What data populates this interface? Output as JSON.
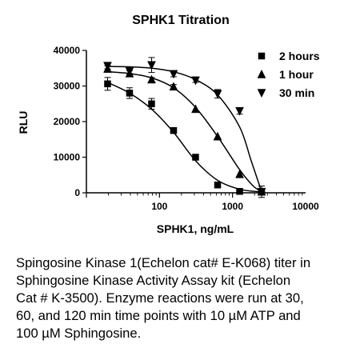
{
  "chart_data": {
    "type": "scatter",
    "title": "SPHK1 Titration",
    "xlabel": "SPHK1, ng/mL",
    "ylabel": "RLU",
    "x_scale": "log",
    "xlim": [
      10,
      10000
    ],
    "ylim": [
      0,
      40000
    ],
    "x_ticks": [
      100,
      1000,
      10000
    ],
    "y_ticks": [
      0,
      10000,
      20000,
      30000,
      40000
    ],
    "x_tick_labels": [
      "100",
      "1000",
      "10000"
    ],
    "y_tick_labels": [
      "0",
      "10000",
      "20000",
      "30000",
      "40000"
    ],
    "grid": false,
    "legend_position": "top-right",
    "series": [
      {
        "name": "2 hours",
        "marker": "square",
        "x": [
          19.5,
          39,
          78,
          156,
          312,
          625,
          1250,
          2500
        ],
        "y": [
          30600,
          28000,
          25000,
          17500,
          10000,
          2200,
          400,
          200
        ],
        "error": [
          1800,
          1500,
          1500,
          0,
          0,
          0,
          0,
          0
        ],
        "curve": [
          [
            19.5,
            31000
          ],
          [
            39,
            28000
          ],
          [
            78,
            23500
          ],
          [
            156,
            17000
          ],
          [
            312,
            9000
          ],
          [
            625,
            3500
          ],
          [
            1250,
            1000
          ],
          [
            2500,
            250
          ]
        ]
      },
      {
        "name": "1 hour",
        "marker": "triangle-up",
        "x": [
          19.5,
          39,
          78,
          156,
          312,
          625,
          1250,
          2500
        ],
        "y": [
          34800,
          33500,
          31800,
          29800,
          23500,
          15800,
          5200,
          300
        ],
        "error": [
          900,
          800,
          600,
          600,
          0,
          0,
          0,
          0
        ],
        "curve": [
          [
            19.5,
            34000
          ],
          [
            39,
            33500
          ],
          [
            78,
            32300
          ],
          [
            156,
            29500
          ],
          [
            312,
            24000
          ],
          [
            625,
            15800
          ],
          [
            1250,
            6500
          ],
          [
            1900,
            2000
          ],
          [
            2500,
            300
          ]
        ]
      },
      {
        "name": "30 min",
        "marker": "triangle-down",
        "x": [
          19.5,
          39,
          78,
          156,
          312,
          625,
          1250,
          2500
        ],
        "y": [
          35700,
          34200,
          35900,
          33400,
          31600,
          27800,
          23000,
          300
        ],
        "error": [
          900,
          700,
          2100,
          800,
          600,
          1200,
          900,
          1600
        ],
        "curve": [
          [
            19.5,
            35500
          ],
          [
            39,
            35400
          ],
          [
            78,
            35000
          ],
          [
            156,
            34000
          ],
          [
            312,
            31800
          ],
          [
            625,
            27500
          ],
          [
            1250,
            18500
          ],
          [
            1800,
            9000
          ],
          [
            2500,
            300
          ]
        ]
      }
    ]
  },
  "caption": {
    "lines": [
      "Spingosine Kinase 1(Echelon cat# E-K068) titer in",
      "Sphingosine  Kinase Activity  Assay kit  (Echelon",
      "Cat # K-3500). Enzyme reactions were run at 30,",
      "60, and 120 min time points with 10 µM ATP and",
      "100 µM Sphingosine."
    ]
  }
}
